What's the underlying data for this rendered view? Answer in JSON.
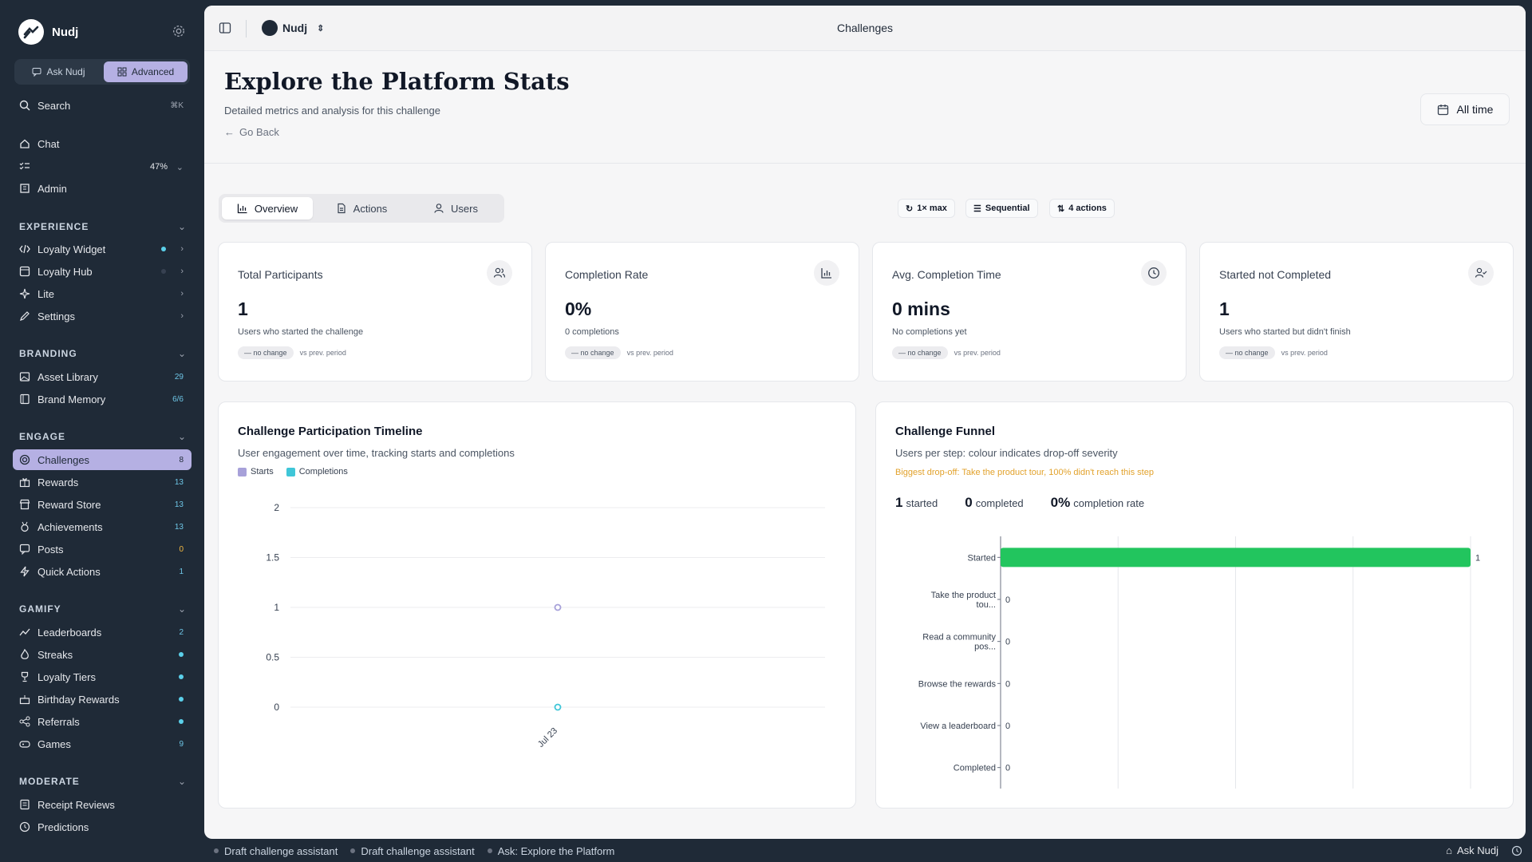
{
  "app": {
    "name": "Nudj"
  },
  "sidebar": {
    "modes": [
      {
        "label": "Ask Nudj"
      },
      {
        "label": "Advanced"
      }
    ],
    "search": {
      "label": "Search",
      "shortcut": "⌘K"
    },
    "top_items": [
      {
        "label": "Chat"
      },
      {
        "label": "",
        "progress": "47%"
      },
      {
        "label": "Admin"
      }
    ],
    "sections": [
      {
        "title": "EXPERIENCE",
        "items": [
          {
            "label": "Loyalty Widget"
          },
          {
            "label": "Loyalty Hub"
          },
          {
            "label": "Lite"
          },
          {
            "label": "Settings"
          }
        ]
      },
      {
        "title": "BRANDING",
        "items": [
          {
            "label": "Asset Library",
            "count": "29"
          },
          {
            "label": "Brand Memory",
            "count": "6/6"
          }
        ]
      },
      {
        "title": "ENGAGE",
        "items": [
          {
            "label": "Challenges",
            "count": "8"
          },
          {
            "label": "Rewards",
            "count": "13"
          },
          {
            "label": "Reward Store",
            "count": "13"
          },
          {
            "label": "Achievements",
            "count": "13"
          },
          {
            "label": "Posts",
            "count": "0"
          },
          {
            "label": "Quick Actions",
            "count": "1"
          }
        ]
      },
      {
        "title": "GAMIFY",
        "items": [
          {
            "label": "Leaderboards",
            "count": "2"
          },
          {
            "label": "Streaks"
          },
          {
            "label": "Loyalty Tiers"
          },
          {
            "label": "Birthday Rewards"
          },
          {
            "label": "Referrals"
          },
          {
            "label": "Games",
            "count": "9"
          }
        ]
      },
      {
        "title": "MODERATE",
        "items": [
          {
            "label": "Receipt Reviews"
          },
          {
            "label": "Predictions"
          }
        ]
      }
    ]
  },
  "topbar": {
    "workspace": "Nudj",
    "title": "Challenges"
  },
  "header": {
    "title": "Explore the Platform Stats",
    "subtitle": "Detailed metrics and analysis for this challenge",
    "back": "Go Back",
    "range": "All time"
  },
  "tabs": [
    {
      "label": "Overview"
    },
    {
      "label": "Actions"
    },
    {
      "label": "Users"
    }
  ],
  "chips": [
    {
      "label": "1× max"
    },
    {
      "label": "Sequential"
    },
    {
      "label": "4 actions"
    }
  ],
  "stats": [
    {
      "label": "Total Participants",
      "value": "1",
      "desc": "Users who started the challenge",
      "change": "no change",
      "vs": "vs prev. period"
    },
    {
      "label": "Completion Rate",
      "value": "0%",
      "desc": "0 completions",
      "change": "no change",
      "vs": "vs prev. period"
    },
    {
      "label": "Avg. Completion Time",
      "value": "0 mins",
      "desc": "No completions yet",
      "change": "no change",
      "vs": "vs prev. period"
    },
    {
      "label": "Started not Completed",
      "value": "1",
      "desc": "Users who started but didn't finish",
      "change": "no change",
      "vs": "vs prev. period"
    }
  ],
  "timeline": {
    "title": "Challenge Participation Timeline",
    "subtitle": "User engagement over time, tracking starts and completions"
  },
  "funnel": {
    "title": "Challenge Funnel",
    "subtitle": "Users per step: colour indicates drop-off severity",
    "dropoff": "Biggest drop-off: Take the product tour, 100% didn't reach this step",
    "started": "1",
    "started_label": "started",
    "completed": "0",
    "completed_label": "completed",
    "rate": "0%",
    "rate_label": "completion rate"
  },
  "chart_data": [
    {
      "type": "line",
      "title": "Challenge Participation Timeline",
      "categories": [
        "Jul 23"
      ],
      "series": [
        {
          "name": "Starts",
          "values": [
            1
          ],
          "color": "#a7a1d9"
        },
        {
          "name": "Completions",
          "values": [
            0
          ],
          "color": "#3fc6d8"
        }
      ],
      "yticks": [
        "0",
        "0.5",
        "1",
        "1.5",
        "2"
      ],
      "ylim": [
        0,
        2
      ],
      "grid": true,
      "legend": "top-left"
    },
    {
      "type": "bar",
      "orientation": "horizontal",
      "title": "Challenge Funnel",
      "categories": [
        "Started",
        "Take the product tou...",
        "Read a community pos...",
        "Browse the rewards",
        "View a leaderboard",
        "Completed"
      ],
      "values": [
        1,
        0,
        0,
        0,
        0,
        0
      ],
      "xlim": [
        0,
        1
      ],
      "bar_color": "#22c55e",
      "grid": true
    }
  ],
  "bottombar": {
    "items": [
      {
        "label": "Draft challenge assistant"
      },
      {
        "label": "Draft challenge assistant"
      },
      {
        "label": "Ask: Explore the Platform"
      }
    ],
    "ask": "Ask Nudj"
  }
}
